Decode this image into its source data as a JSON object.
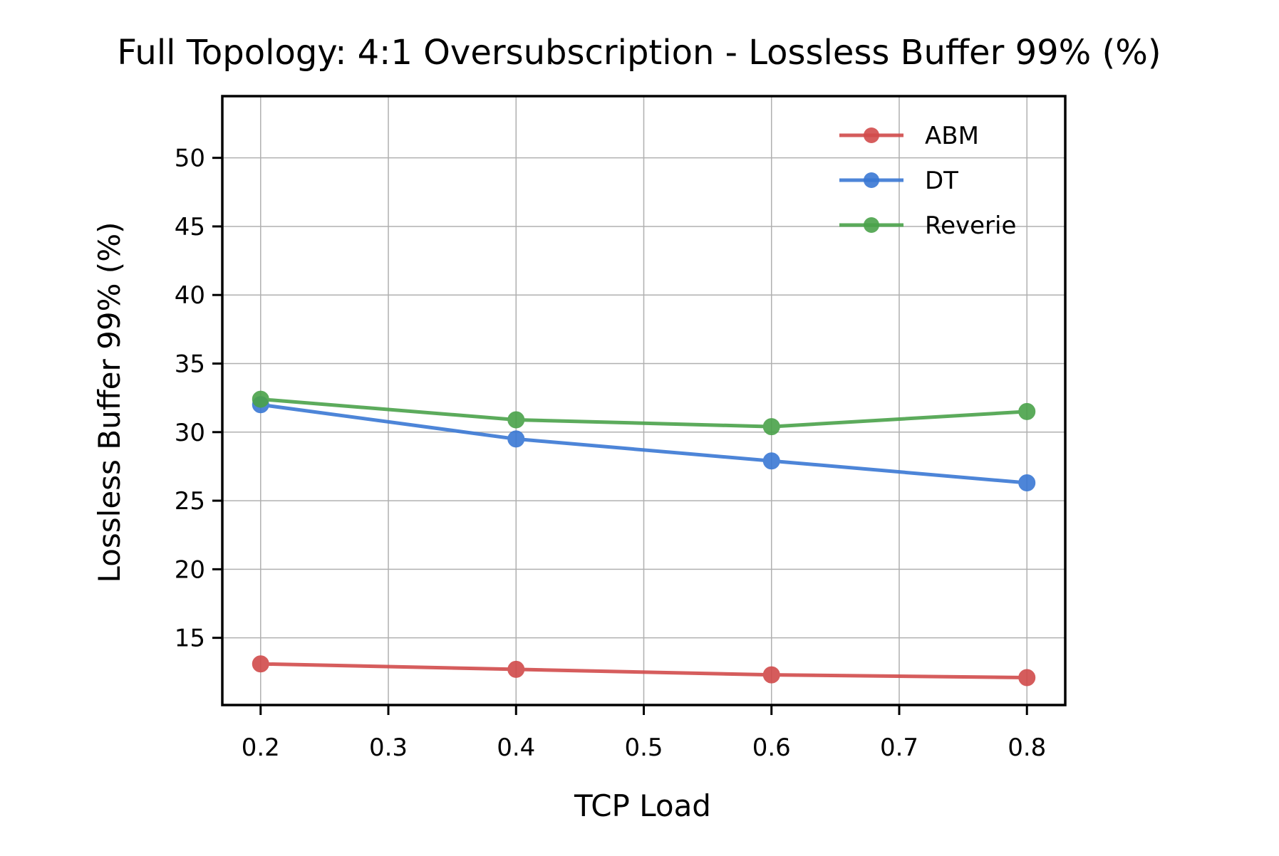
{
  "chart_data": {
    "type": "line",
    "title": "Full Topology: 4:1 Oversubscription - Lossless Buffer 99% (%)",
    "xlabel": "TCP Load",
    "ylabel": "Lossless Buffer 99% (%)",
    "x": [
      0.2,
      0.4,
      0.6,
      0.8
    ],
    "xlim": [
      0.17,
      0.83
    ],
    "ylim": [
      10.1,
      54.5
    ],
    "xticks": [
      "0.2",
      "0.3",
      "0.4",
      "0.5",
      "0.6",
      "0.7",
      "0.8"
    ],
    "yticks": [
      "15",
      "20",
      "25",
      "30",
      "35",
      "40",
      "45",
      "50"
    ],
    "grid": true,
    "legend_position": "top-right",
    "series": [
      {
        "name": "ABM",
        "color": "#d14b4b",
        "values": [
          13.1,
          12.7,
          12.3,
          12.1
        ]
      },
      {
        "name": "DT",
        "color": "#3a78d4",
        "values": [
          32.0,
          29.5,
          27.9,
          26.3
        ]
      },
      {
        "name": "Reverie",
        "color": "#4aa24a",
        "values": [
          32.4,
          30.9,
          30.4,
          31.5
        ]
      }
    ]
  }
}
